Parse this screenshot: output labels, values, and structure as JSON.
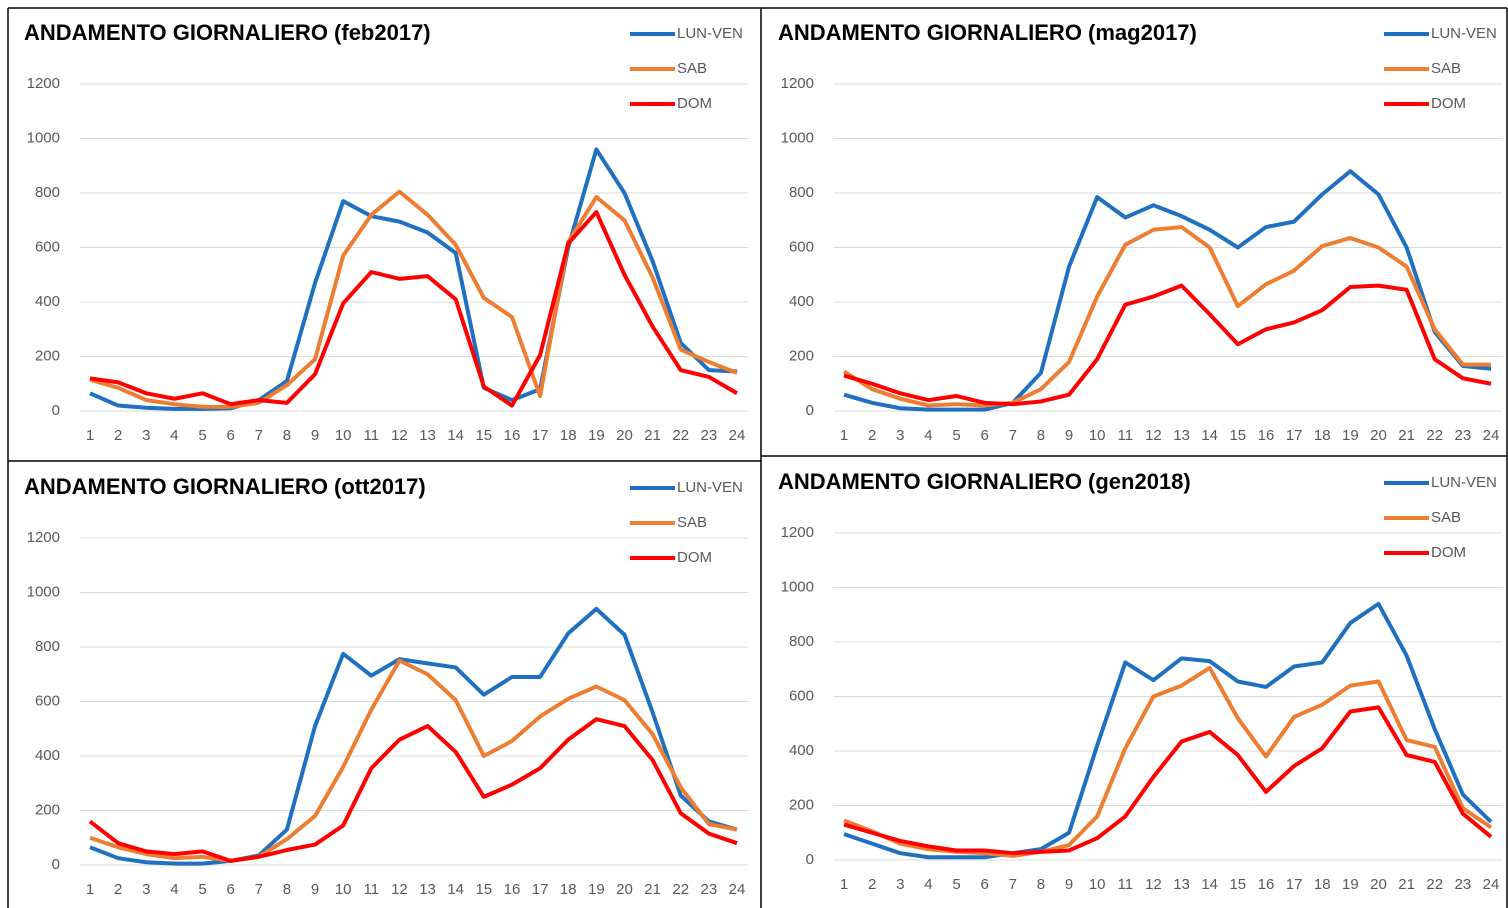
{
  "chart_data": [
    {
      "type": "line",
      "title": "ANDAMENTO GIORNALIERO (feb2017)",
      "categories": [
        "1",
        "2",
        "3",
        "4",
        "5",
        "6",
        "7",
        "8",
        "9",
        "10",
        "11",
        "12",
        "13",
        "14",
        "15",
        "16",
        "17",
        "18",
        "19",
        "20",
        "21",
        "22",
        "23",
        "24"
      ],
      "ylim": [
        0,
        1200
      ],
      "yticks": [
        0,
        200,
        400,
        600,
        800,
        1000,
        1200
      ],
      "grid": true,
      "legend": "top-right",
      "series": [
        {
          "name": "LUN-VEN",
          "color": "#1f70c1",
          "values": [
            65,
            20,
            12,
            8,
            8,
            10,
            40,
            110,
            470,
            770,
            715,
            695,
            655,
            580,
            85,
            40,
            80,
            600,
            960,
            800,
            550,
            250,
            150,
            145
          ]
        },
        {
          "name": "SAB",
          "color": "#ed7d31",
          "values": [
            115,
            85,
            40,
            25,
            15,
            15,
            30,
            95,
            190,
            570,
            720,
            805,
            720,
            610,
            415,
            345,
            55,
            620,
            785,
            700,
            490,
            225,
            180,
            140
          ]
        },
        {
          "name": "DOM",
          "color": "#ff0000",
          "values": [
            120,
            105,
            65,
            45,
            65,
            25,
            40,
            30,
            135,
            395,
            510,
            485,
            495,
            410,
            90,
            20,
            205,
            615,
            730,
            500,
            310,
            150,
            125,
            65
          ]
        }
      ]
    },
    {
      "type": "line",
      "title": "ANDAMENTO GIORNALIERO (mag2017)",
      "categories": [
        "1",
        "2",
        "3",
        "4",
        "5",
        "6",
        "7",
        "8",
        "9",
        "10",
        "11",
        "12",
        "13",
        "14",
        "15",
        "16",
        "17",
        "18",
        "19",
        "20",
        "21",
        "22",
        "23",
        "24"
      ],
      "ylim": [
        0,
        1200
      ],
      "yticks": [
        0,
        200,
        400,
        600,
        800,
        1000,
        1200
      ],
      "grid": true,
      "legend": "top-right",
      "series": [
        {
          "name": "LUN-VEN",
          "color": "#1f70c1",
          "values": [
            60,
            30,
            10,
            5,
            5,
            5,
            30,
            140,
            530,
            785,
            710,
            755,
            715,
            665,
            600,
            675,
            695,
            795,
            880,
            795,
            600,
            290,
            165,
            155
          ]
        },
        {
          "name": "SAB",
          "color": "#ed7d31",
          "values": [
            145,
            80,
            45,
            20,
            25,
            20,
            30,
            80,
            180,
            420,
            610,
            665,
            675,
            600,
            385,
            465,
            515,
            605,
            635,
            600,
            530,
            300,
            170,
            170
          ]
        },
        {
          "name": "DOM",
          "color": "#ff0000",
          "values": [
            130,
            100,
            65,
            40,
            55,
            30,
            25,
            35,
            60,
            190,
            390,
            420,
            460,
            355,
            245,
            300,
            325,
            370,
            455,
            460,
            445,
            190,
            120,
            100
          ]
        }
      ]
    },
    {
      "type": "line",
      "title": "ANDAMENTO GIORNALIERO (ott2017)",
      "categories": [
        "1",
        "2",
        "3",
        "4",
        "5",
        "6",
        "7",
        "8",
        "9",
        "10",
        "11",
        "12",
        "13",
        "14",
        "15",
        "16",
        "17",
        "18",
        "19",
        "20",
        "21",
        "22",
        "23",
        "24"
      ],
      "ylim": [
        0,
        1200
      ],
      "yticks": [
        0,
        200,
        400,
        600,
        800,
        1000,
        1200
      ],
      "grid": true,
      "legend": "top-right",
      "series": [
        {
          "name": "LUN-VEN",
          "color": "#1f70c1",
          "values": [
            65,
            25,
            10,
            5,
            5,
            15,
            35,
            130,
            510,
            775,
            695,
            755,
            740,
            725,
            625,
            690,
            690,
            850,
            940,
            845,
            560,
            255,
            160,
            130
          ]
        },
        {
          "name": "SAB",
          "color": "#ed7d31",
          "values": [
            100,
            65,
            40,
            25,
            30,
            15,
            30,
            95,
            180,
            360,
            570,
            750,
            700,
            605,
            400,
            455,
            545,
            610,
            655,
            605,
            480,
            285,
            150,
            130
          ]
        },
        {
          "name": "DOM",
          "color": "#ff0000",
          "values": [
            160,
            80,
            50,
            40,
            50,
            15,
            30,
            55,
            75,
            145,
            355,
            460,
            510,
            415,
            250,
            295,
            355,
            460,
            535,
            510,
            385,
            190,
            115,
            80
          ]
        }
      ]
    },
    {
      "type": "line",
      "title": "ANDAMENTO GIORNALIERO (gen2018)",
      "categories": [
        "1",
        "2",
        "3",
        "4",
        "5",
        "6",
        "7",
        "8",
        "9",
        "10",
        "11",
        "12",
        "13",
        "14",
        "15",
        "16",
        "17",
        "18",
        "19",
        "20",
        "21",
        "22",
        "23",
        "24"
      ],
      "ylim": [
        0,
        1200
      ],
      "yticks": [
        0,
        200,
        400,
        600,
        800,
        1000,
        1200
      ],
      "grid": true,
      "legend": "top-right",
      "series": [
        {
          "name": "LUN-VEN",
          "color": "#1f70c1",
          "values": [
            95,
            60,
            25,
            10,
            10,
            10,
            25,
            40,
            100,
            420,
            725,
            660,
            740,
            730,
            655,
            635,
            710,
            725,
            870,
            940,
            750,
            480,
            240,
            140
          ]
        },
        {
          "name": "SAB",
          "color": "#ed7d31",
          "values": [
            145,
            105,
            60,
            40,
            30,
            25,
            15,
            30,
            55,
            160,
            410,
            600,
            640,
            705,
            520,
            380,
            525,
            570,
            640,
            655,
            440,
            415,
            190,
            120
          ]
        },
        {
          "name": "DOM",
          "color": "#ff0000",
          "values": [
            130,
            100,
            70,
            50,
            35,
            35,
            25,
            30,
            35,
            80,
            160,
            305,
            435,
            470,
            385,
            250,
            345,
            410,
            545,
            560,
            385,
            360,
            170,
            85
          ]
        }
      ]
    }
  ]
}
